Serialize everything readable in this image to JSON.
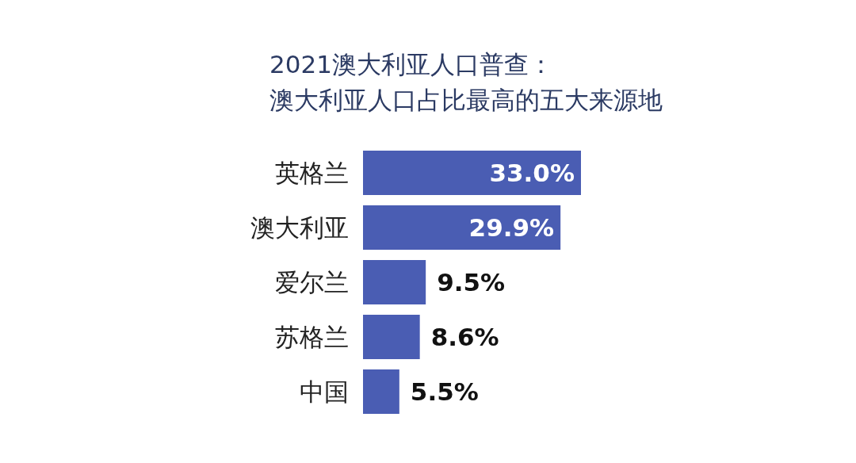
{
  "chart_data": {
    "type": "bar",
    "orientation": "horizontal",
    "title": "2021澳大利亚人口普查：",
    "subtitle": "澳大利亚人口占比最高的五大来源地",
    "categories": [
      "英格兰",
      "澳大利亚",
      "爱尔兰",
      "苏格兰",
      "中国"
    ],
    "values": [
      33.0,
      29.9,
      9.5,
      8.6,
      5.5
    ],
    "value_labels": [
      "33.0%",
      "29.9%",
      "9.5%",
      "8.6%",
      "5.5%"
    ],
    "color": "#4a5db3"
  }
}
